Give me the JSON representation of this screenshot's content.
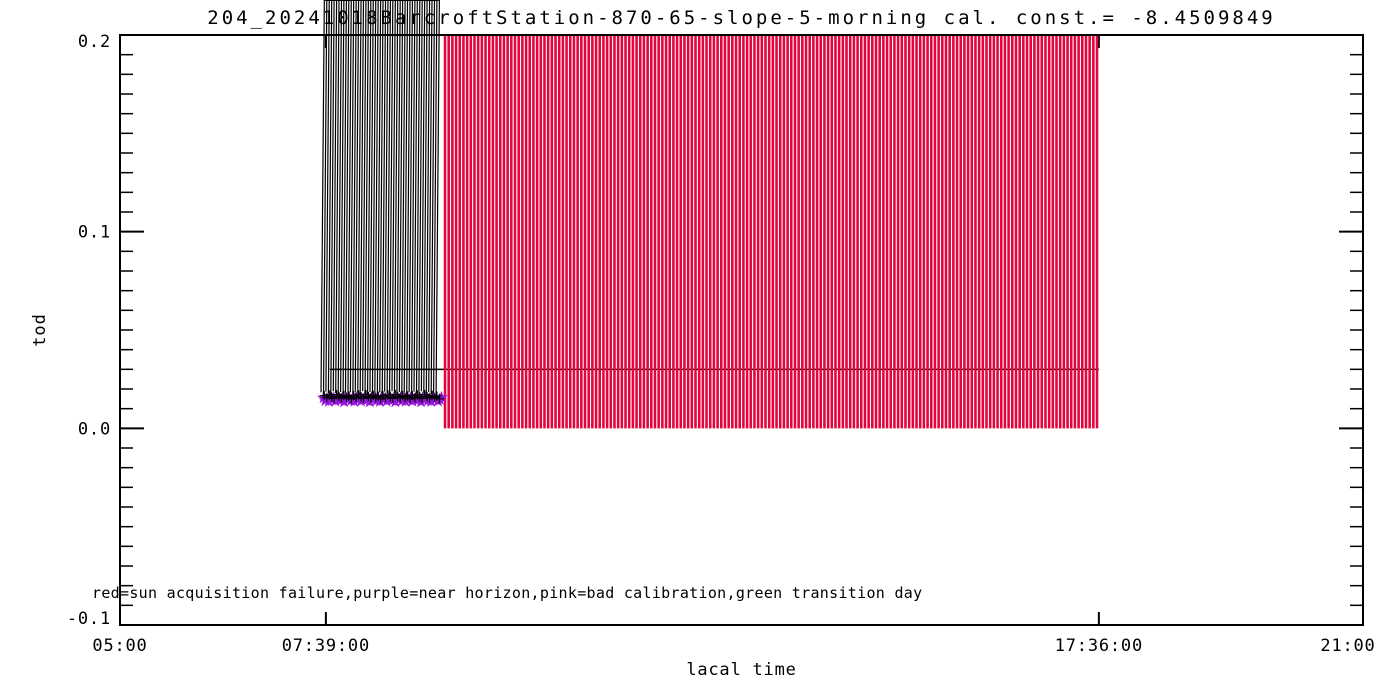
{
  "chart_data": {
    "type": "scatter",
    "title": "204_20241018BarcroftStation-870-65-slope-5-morning cal. const.= -8.4509849",
    "legend_note": "red=sun acquisition failure,purple=near horizon,pink=bad calibration,green transition day",
    "x_axis": {
      "label": "lacal time",
      "range_hours": [
        5,
        21
      ],
      "ticks": [
        {
          "hours": 5,
          "label": "05:00",
          "edge": true
        },
        {
          "hours": 7.65,
          "label": "07:39:00",
          "edge": false
        },
        {
          "hours": 17.6,
          "label": "17:36:00",
          "edge": false
        },
        {
          "hours": 21,
          "label": "21:00",
          "edge": true
        }
      ]
    },
    "y_axis": {
      "label": "tod",
      "range": [
        -0.1,
        0.2
      ],
      "major_ticks": [
        {
          "value": 0.2,
          "label": "0.2"
        },
        {
          "value": 0.1,
          "label": "0.1"
        },
        {
          "value": 0.0,
          "label": "0.0"
        },
        {
          "value": -0.1,
          "label": "-0.1"
        }
      ],
      "minor_tick_step": 0.01
    },
    "threshold_line": {
      "tod": 0.03,
      "start_hours": 7.7,
      "end_hours": 17.6,
      "color": "#000000"
    },
    "red_region": {
      "start_hours": 9.16,
      "end_hours": 17.6,
      "tod_bottom": 0.0,
      "tod_top": 0.2,
      "line_count": 178,
      "color": "#e2063c"
    },
    "series": [
      {
        "name": "purple-near-horizon",
        "marker": "filled-star",
        "color": "#9614dc",
        "points": [
          [
            7.62,
            0.0155
          ],
          [
            7.642,
            0.0141
          ],
          [
            7.664,
            0.0149
          ],
          [
            7.686,
            0.0137
          ],
          [
            7.708,
            0.0159
          ],
          [
            7.73,
            0.0145
          ],
          [
            7.752,
            0.0153
          ],
          [
            7.774,
            0.0139
          ],
          [
            7.796,
            0.0147
          ],
          [
            7.818,
            0.0157
          ],
          [
            7.84,
            0.0143
          ],
          [
            7.862,
            0.0151
          ],
          [
            7.884,
            0.0135
          ],
          [
            7.906,
            0.0155
          ],
          [
            7.928,
            0.0145
          ],
          [
            7.95,
            0.0155
          ],
          [
            7.972,
            0.0141
          ],
          [
            7.994,
            0.0149
          ],
          [
            8.016,
            0.0137
          ],
          [
            8.038,
            0.0159
          ],
          [
            8.06,
            0.0145
          ],
          [
            8.082,
            0.0153
          ],
          [
            8.104,
            0.0139
          ],
          [
            8.126,
            0.0147
          ],
          [
            8.148,
            0.0157
          ],
          [
            8.17,
            0.0143
          ],
          [
            8.192,
            0.0151
          ],
          [
            8.214,
            0.0135
          ],
          [
            8.236,
            0.0155
          ],
          [
            8.258,
            0.0145
          ],
          [
            8.28,
            0.0155
          ],
          [
            8.302,
            0.0141
          ],
          [
            8.324,
            0.0149
          ],
          [
            8.346,
            0.0137
          ],
          [
            8.368,
            0.0159
          ],
          [
            8.39,
            0.0145
          ],
          [
            8.412,
            0.0153
          ],
          [
            8.434,
            0.0139
          ],
          [
            8.456,
            0.0147
          ],
          [
            8.478,
            0.0157
          ],
          [
            8.5,
            0.0143
          ],
          [
            8.522,
            0.0151
          ],
          [
            8.544,
            0.0135
          ],
          [
            8.566,
            0.0155
          ],
          [
            8.588,
            0.0145
          ],
          [
            8.61,
            0.0155
          ],
          [
            8.632,
            0.0141
          ],
          [
            8.654,
            0.0149
          ],
          [
            8.676,
            0.0137
          ],
          [
            8.698,
            0.0159
          ],
          [
            8.72,
            0.0145
          ],
          [
            8.742,
            0.0153
          ],
          [
            8.764,
            0.0139
          ],
          [
            8.786,
            0.0147
          ],
          [
            8.808,
            0.0157
          ],
          [
            8.83,
            0.0143
          ],
          [
            8.852,
            0.0151
          ],
          [
            8.874,
            0.0135
          ],
          [
            8.896,
            0.0155
          ],
          [
            8.918,
            0.0145
          ],
          [
            8.94,
            0.0155
          ],
          [
            8.962,
            0.0141
          ],
          [
            8.984,
            0.0149
          ],
          [
            9.006,
            0.0137
          ],
          [
            9.028,
            0.0159
          ],
          [
            9.05,
            0.0145
          ],
          [
            9.072,
            0.0153
          ],
          [
            9.094,
            0.0139
          ],
          [
            9.116,
            0.0147
          ],
          [
            9.138,
            0.0157
          ]
        ]
      },
      {
        "name": "black-measurements",
        "marker": "asterisk",
        "color": "#000000",
        "points": [
          [
            7.63,
            0.0166
          ],
          [
            7.662,
            0.0156
          ],
          [
            7.693,
            0.017
          ],
          [
            7.725,
            0.016
          ],
          [
            7.756,
            0.0152
          ],
          [
            7.788,
            0.0172
          ],
          [
            7.819,
            0.0162
          ],
          [
            7.851,
            0.0154
          ],
          [
            7.882,
            0.0168
          ],
          [
            7.914,
            0.0158
          ],
          [
            7.945,
            0.0164
          ],
          [
            7.977,
            0.015
          ],
          [
            8.008,
            0.0166
          ],
          [
            8.04,
            0.0156
          ],
          [
            8.071,
            0.017
          ],
          [
            8.103,
            0.016
          ],
          [
            8.134,
            0.0152
          ],
          [
            8.166,
            0.0172
          ],
          [
            8.197,
            0.0162
          ],
          [
            8.229,
            0.0154
          ],
          [
            8.26,
            0.0168
          ],
          [
            8.292,
            0.0158
          ],
          [
            8.323,
            0.0164
          ],
          [
            8.355,
            0.015
          ],
          [
            8.386,
            0.0166
          ],
          [
            8.418,
            0.0156
          ],
          [
            8.449,
            0.017
          ],
          [
            8.481,
            0.016
          ],
          [
            8.512,
            0.0152
          ],
          [
            8.544,
            0.0172
          ],
          [
            8.575,
            0.0162
          ],
          [
            8.607,
            0.0154
          ],
          [
            8.638,
            0.0168
          ],
          [
            8.67,
            0.0158
          ],
          [
            8.701,
            0.0164
          ],
          [
            8.733,
            0.015
          ],
          [
            8.764,
            0.0166
          ],
          [
            8.796,
            0.0156
          ],
          [
            8.827,
            0.017
          ],
          [
            8.859,
            0.016
          ],
          [
            8.89,
            0.0152
          ],
          [
            8.922,
            0.0172
          ],
          [
            8.953,
            0.0162
          ],
          [
            8.985,
            0.0154
          ],
          [
            9.016,
            0.0168
          ],
          [
            9.048,
            0.0158
          ],
          [
            9.079,
            0.0164
          ],
          [
            9.111,
            0.015
          ]
        ]
      }
    ]
  }
}
